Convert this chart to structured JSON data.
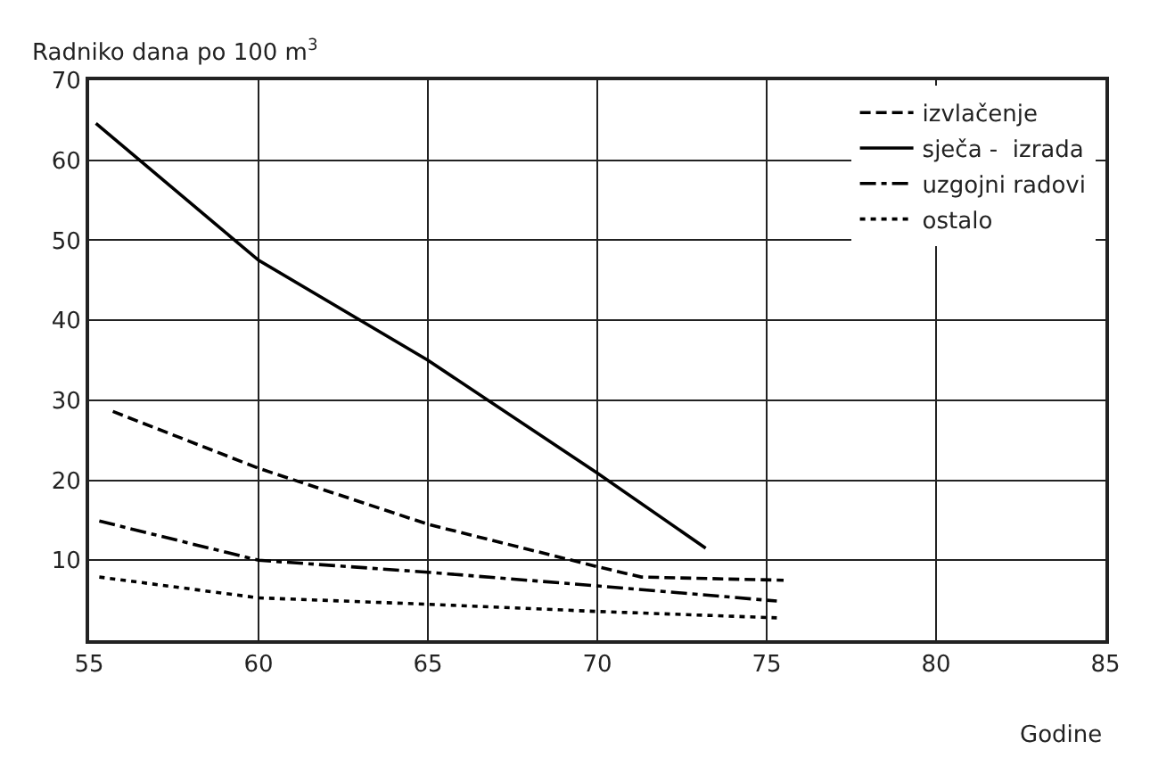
{
  "chart_data": {
    "type": "line",
    "ylabel": "Radniko dana po 100 m$^{3}$",
    "xlabel": "Godine",
    "xlim": [
      55,
      85
    ],
    "xticks": [
      55,
      60,
      65,
      70,
      75,
      80,
      85
    ],
    "ylim": [
      0,
      70
    ],
    "yticks": [
      10,
      20,
      30,
      40,
      50,
      60,
      70
    ],
    "grid": true,
    "legend": "top right",
    "marker": "none",
    "series": [
      {
        "name": "izvlačenje",
        "color": "#000000",
        "line_style": "dashed",
        "x": [
          55.7,
          60,
          65,
          70,
          71.3,
          75.5
        ],
        "values": [
          28.6,
          21.5,
          14.5,
          9.2,
          7.9,
          7.5
        ]
      },
      {
        "name": "sječa -  izrada",
        "color": "#000000",
        "line_style": "solid",
        "x": [
          55.2,
          60,
          65,
          70,
          73.2
        ],
        "values": [
          64.6,
          47.5,
          35,
          20.9,
          11.5
        ]
      },
      {
        "name": "uzgojni radovi",
        "color": "#000000",
        "line_style": "dashdot",
        "x": [
          55.3,
          60,
          65,
          70,
          75.3
        ],
        "values": [
          14.9,
          10,
          8.5,
          6.8,
          4.9
        ]
      },
      {
        "name": "ostalo",
        "color": "#000000",
        "line_style": "dotted",
        "x": [
          55.3,
          60,
          65,
          70,
          75.3
        ],
        "values": [
          7.9,
          5.3,
          4.5,
          3.6,
          2.8
        ]
      }
    ]
  }
}
